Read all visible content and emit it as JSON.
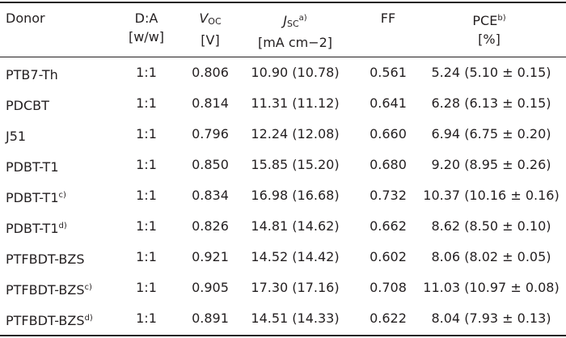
{
  "table": {
    "headers": {
      "donor": "Donor",
      "da_line1": "D:A",
      "da_line2": "[w/w]",
      "voc_main": "V",
      "voc_sub": "OC",
      "voc_unit": "[V]",
      "jsc_main": "J",
      "jsc_sub": "SC",
      "jsc_note": "a)",
      "jsc_unit": "[mA cm−2]",
      "ff": "FF",
      "pce_main": "PCE",
      "pce_note": "b)",
      "pce_unit": "[%]"
    },
    "rows": [
      {
        "donor": "PTB7-Th",
        "note": "",
        "da": "1:1",
        "voc": "0.806",
        "jsc": "10.90 (10.78)",
        "ff": "0.561",
        "pce": "5.24 (5.10 ± 0.15)"
      },
      {
        "donor": "PDCBT",
        "note": "",
        "da": "1:1",
        "voc": "0.814",
        "jsc": "11.31 (11.12)",
        "ff": "0.641",
        "pce": "6.28 (6.13 ± 0.15)"
      },
      {
        "donor": "J51",
        "note": "",
        "da": "1:1",
        "voc": "0.796",
        "jsc": "12.24 (12.08)",
        "ff": "0.660",
        "pce": "6.94 (6.75 ± 0.20)"
      },
      {
        "donor": "PDBT-T1",
        "note": "",
        "da": "1:1",
        "voc": "0.850",
        "jsc": "15.85 (15.20)",
        "ff": "0.680",
        "pce": "9.20 (8.95 ± 0.26)"
      },
      {
        "donor": "PDBT-T1",
        "note": "c)",
        "da": "1:1",
        "voc": "0.834",
        "jsc": "16.98 (16.68)",
        "ff": "0.732",
        "pce": "10.37 (10.16 ± 0.16)"
      },
      {
        "donor": "PDBT-T1",
        "note": "d)",
        "da": "1:1",
        "voc": "0.826",
        "jsc": "14.81 (14.62)",
        "ff": "0.662",
        "pce": "8.62 (8.50 ± 0.10)"
      },
      {
        "donor": "PTFBDT-BZS",
        "note": "",
        "da": "1:1",
        "voc": "0.921",
        "jsc": "14.52 (14.42)",
        "ff": "0.602",
        "pce": "8.06 (8.02 ± 0.05)"
      },
      {
        "donor": "PTFBDT-BZS",
        "note": "c)",
        "da": "1:1",
        "voc": "0.905",
        "jsc": "17.30 (17.16)",
        "ff": "0.708",
        "pce": "11.03 (10.97 ± 0.08)"
      },
      {
        "donor": "PTFBDT-BZS",
        "note": "d)",
        "da": "1:1",
        "voc": "0.891",
        "jsc": "14.51 (14.33)",
        "ff": "0.622",
        "pce": "8.04 (7.93 ± 0.13)"
      }
    ]
  }
}
